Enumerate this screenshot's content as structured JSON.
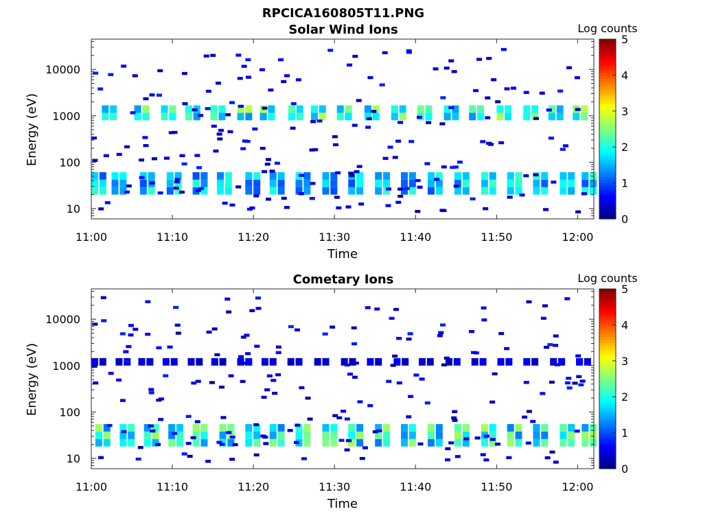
{
  "figure": {
    "title": "RPCICA160805T11.PNG"
  },
  "colorbar": {
    "label": "Log counts",
    "ticks": [
      "0",
      "1",
      "2",
      "3",
      "4",
      "5"
    ],
    "range": [
      0,
      5
    ],
    "colormap": "jet"
  },
  "chart_data": [
    {
      "type": "heatmap",
      "title": "Solar Wind Ions",
      "xlabel": "Time",
      "ylabel": "Energy (eV)",
      "xticks": [
        "11:00",
        "11:10",
        "11:20",
        "11:30",
        "11:40",
        "11:50",
        "12:00"
      ],
      "yticks": [
        "10",
        "100",
        "1000",
        "10000"
      ],
      "xlim": [
        "11:00",
        "12:02"
      ],
      "ylim": [
        6,
        45000
      ],
      "yscale": "log",
      "zlabel": "Log counts",
      "zlim": [
        0,
        5
      ],
      "description_of_cells": "time-energy spectrogram; values are log10 counts",
      "bands": [
        {
          "name": "solar-wind-1keV",
          "energy_eV": [
            800,
            1500
          ],
          "peak_log_counts": 2.8,
          "pulse_minutes": [
            1.8,
            5.8,
            9.1,
            12.1,
            15.2,
            18.5,
            21.3,
            24.8,
            27.6,
            30.8,
            34.2,
            37.5,
            40.7,
            44.0,
            47.1,
            50.5,
            53.8,
            56.9,
            59.9
          ]
        },
        {
          "name": "low-energy-ions",
          "energy_eV": [
            20,
            55
          ],
          "peak_log_counts": 2.2,
          "pulse_minutes": [
            0.5,
            3.0,
            6.5,
            9.8,
            13.0,
            16.0,
            19.5,
            22.5,
            25.7,
            29.0,
            32.2,
            35.5,
            38.7,
            42.0,
            45.3,
            48.6,
            51.8,
            55.0,
            58.3,
            61.0
          ]
        }
      ]
    },
    {
      "type": "heatmap",
      "title": "Cometary Ions",
      "xlabel": "Time",
      "ylabel": "Energy (eV)",
      "xticks": [
        "11:00",
        "11:10",
        "11:20",
        "11:30",
        "11:40",
        "11:50",
        "12:00"
      ],
      "yticks": [
        "10",
        "100",
        "1000",
        "10000"
      ],
      "xlim": [
        "11:00",
        "12:02"
      ],
      "ylim": [
        6,
        45000
      ],
      "yscale": "log",
      "zlabel": "Log counts",
      "zlim": [
        0,
        5
      ],
      "bands": [
        {
          "name": "cometary-low-energy",
          "energy_eV": [
            18,
            50
          ],
          "peak_log_counts": 2.7,
          "pulse_minutes": [
            1.0,
            4.0,
            7.0,
            10.0,
            13.0,
            16.3,
            19.5,
            22.5,
            25.7,
            29.0,
            32.2,
            35.5,
            38.7,
            42.0,
            45.3,
            48.6,
            51.8,
            55.0,
            58.3,
            61.0
          ]
        },
        {
          "name": "cometary-1keV",
          "energy_eV": [
            1000,
            1400
          ],
          "peak_log_counts": 0.6,
          "pulse_minutes": [
            0.5,
            3.5,
            6.3,
            9.3,
            12.4,
            15.3,
            18.5,
            21.5,
            24.7,
            28.0,
            31.3,
            34.5,
            37.8,
            40.9,
            44.2,
            47.4,
            50.6,
            53.8,
            57.1,
            60.3
          ]
        }
      ]
    }
  ]
}
